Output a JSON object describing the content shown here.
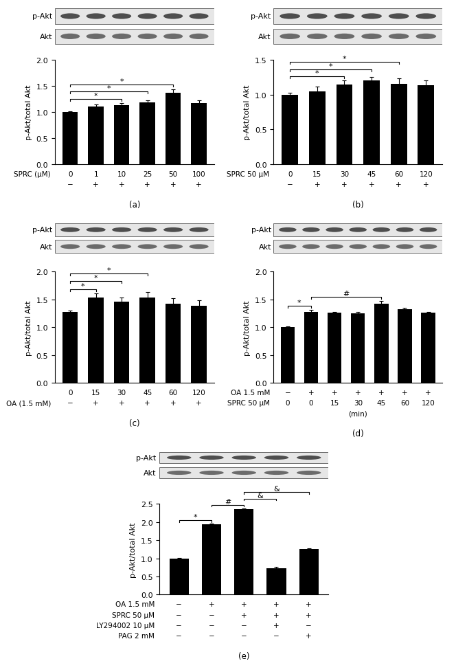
{
  "chart_data": [
    {
      "type": "bar",
      "panel": "(a)",
      "ylabel": "p-Akt/total Akt",
      "color": "#000000",
      "blot_labels": [
        "p-Akt",
        "Akt"
      ],
      "categories": [
        "0",
        "1",
        "10",
        "25",
        "50",
        "100"
      ],
      "values": [
        1.0,
        1.1,
        1.13,
        1.19,
        1.37,
        1.17
      ],
      "errors": [
        0.01,
        0.04,
        0.04,
        0.04,
        0.07,
        0.06
      ],
      "rows": [
        {
          "label": "SPRC (μM)",
          "cells": [
            "0",
            "1",
            "10",
            "25",
            "50",
            "100"
          ]
        },
        {
          "cells": [
            "−",
            "+",
            "+",
            "+",
            "+",
            "+"
          ]
        }
      ],
      "significance": [
        {
          "from": 0,
          "to": 2,
          "label": "*"
        },
        {
          "from": 0,
          "to": 3,
          "label": "*"
        },
        {
          "from": 0,
          "to": 4,
          "label": "*"
        }
      ],
      "ylim": [
        0,
        2.0
      ],
      "yticks": [
        {
          "value": 0,
          "label": "0.0"
        },
        {
          "value": 0.5,
          "label": "0.5"
        },
        {
          "value": 1.0,
          "label": "1.0"
        },
        {
          "value": 1.5,
          "label": "1.5"
        },
        {
          "value": 2.0,
          "label": "2.0"
        }
      ],
      "tick_labels": "y"
    },
    {
      "type": "bar",
      "panel": "(b)",
      "ylabel": "p-Akt/total Akt",
      "color": "#000000",
      "blot_labels": [
        "p-Akt",
        "Akt"
      ],
      "categories": [
        "0",
        "15",
        "30",
        "45",
        "60",
        "120"
      ],
      "values": [
        1.0,
        1.05,
        1.15,
        1.2,
        1.16,
        1.14
      ],
      "errors": [
        0.03,
        0.07,
        0.05,
        0.05,
        0.07,
        0.06
      ],
      "rows": [
        {
          "label": "SPRC 50 μM",
          "cells": [
            "0",
            "15",
            "30",
            "45",
            "60",
            "120"
          ]
        },
        {
          "cells": [
            "−",
            "+",
            "+",
            "+",
            "+",
            "+"
          ]
        }
      ],
      "significance": [
        {
          "from": 0,
          "to": 2,
          "label": "*"
        },
        {
          "from": 0,
          "to": 3,
          "label": "*"
        },
        {
          "from": 0,
          "to": 4,
          "label": "*"
        }
      ],
      "ylim": [
        0,
        1.5
      ],
      "yticks": [
        {
          "value": 0,
          "label": "0.0"
        },
        {
          "value": 0.5,
          "label": "0.5"
        },
        {
          "value": 1.0,
          "label": "1.0"
        },
        {
          "value": 1.5,
          "label": "1.5"
        }
      ],
      "tick_labels": "y"
    },
    {
      "type": "bar",
      "panel": "(c)",
      "ylabel": "p-Akt/total Akt",
      "color": "#000000",
      "blot_labels": [
        "p-Akt",
        "Akt"
      ],
      "categories": [
        "0",
        "15",
        "30",
        "45",
        "60",
        "120"
      ],
      "values": [
        1.27,
        1.53,
        1.46,
        1.54,
        1.43,
        1.39
      ],
      "errors": [
        0.03,
        0.08,
        0.07,
        0.09,
        0.09,
        0.09
      ],
      "rows": [
        {
          "cells": [
            "0",
            "15",
            "30",
            "45",
            "60",
            "120"
          ]
        },
        {
          "label": "OA (1.5 mM)",
          "cells": [
            "−",
            "+",
            "+",
            "+",
            "+",
            "+"
          ]
        }
      ],
      "significance": [
        {
          "from": 0,
          "to": 1,
          "label": "*"
        },
        {
          "from": 0,
          "to": 2,
          "label": "*"
        },
        {
          "from": 0,
          "to": 3,
          "label": "*"
        }
      ],
      "ylim": [
        0,
        2.0
      ],
      "yticks": [
        {
          "value": 0,
          "label": "0.0"
        },
        {
          "value": 0.5,
          "label": "0.5"
        },
        {
          "value": 1.0,
          "label": "1.0"
        },
        {
          "value": 1.5,
          "label": "1.5"
        },
        {
          "value": 2.0,
          "label": "2.0"
        }
      ],
      "tick_labels": "y"
    },
    {
      "type": "bar",
      "panel": "(d)",
      "ylabel": "p-Akt/total Akt",
      "color": "#000000",
      "blot_labels": [
        "p-Akt",
        "Akt"
      ],
      "categories": [
        "0",
        "0",
        "15",
        "30",
        "45",
        "60",
        "120"
      ],
      "values": [
        1.0,
        1.28,
        1.26,
        1.25,
        1.43,
        1.33,
        1.26
      ],
      "errors": [
        0.02,
        0.03,
        0.02,
        0.02,
        0.04,
        0.02,
        0.02
      ],
      "rows": [
        {
          "label": "OA 1.5 mM",
          "cells": [
            "−",
            "+",
            "+",
            "+",
            "+",
            "+",
            "+"
          ]
        },
        {
          "label": "SPRC 50 μM",
          "cells": [
            "0",
            "0",
            "15",
            "30",
            "45",
            "60",
            "120"
          ]
        }
      ],
      "x_note": "(min)",
      "significance": [
        {
          "from": 0,
          "to": 1,
          "label": "*"
        },
        {
          "from": 1,
          "to": 4,
          "label": "#"
        }
      ],
      "ylim": [
        0,
        2.0
      ],
      "yticks": [
        {
          "value": 0,
          "label": "0.0"
        },
        {
          "value": 0.5,
          "label": "0.5"
        },
        {
          "value": 1.0,
          "label": "1.0"
        },
        {
          "value": 1.5,
          "label": "1.5"
        },
        {
          "value": 2.0,
          "label": "2.0"
        }
      ],
      "tick_labels": "y"
    },
    {
      "type": "bar",
      "panel": "(e)",
      "ylabel": "p-Akt/total Akt",
      "color": "#000000",
      "blot_labels": [
        "p-Akt",
        "Akt"
      ],
      "categories": [
        null,
        null,
        null,
        null,
        null
      ],
      "values": [
        1.0,
        1.94,
        2.35,
        0.73,
        1.25
      ],
      "errors": [
        0.01,
        0.01,
        0.02,
        0.03,
        0.02
      ],
      "rows": [
        {
          "label": "OA 1.5 mM",
          "cells": [
            "−",
            "+",
            "+",
            "+",
            "+"
          ]
        },
        {
          "label": "SPRC 50 μM",
          "cells": [
            "−",
            "−",
            "+",
            "+",
            "+"
          ]
        },
        {
          "label": "LY294002 10 μM",
          "cells": [
            "−",
            "−",
            "−",
            "+",
            "−"
          ]
        },
        {
          "label": "PAG 2 mM",
          "cells": [
            "−",
            "−",
            "−",
            "−",
            "+"
          ]
        }
      ],
      "significance": [
        {
          "from": 0,
          "to": 1,
          "label": "*"
        },
        {
          "from": 1,
          "to": 2,
          "label": "#"
        },
        {
          "from": 2,
          "to": 3,
          "label": "&"
        },
        {
          "from": 2,
          "to": 4,
          "label": "&"
        }
      ],
      "ylim": [
        0,
        2.5
      ],
      "yticks": [
        {
          "value": 0,
          "label": "0.0"
        },
        {
          "value": 0.5,
          "label": "0.5"
        },
        {
          "value": 1.0,
          "label": "1.0"
        },
        {
          "value": 1.5,
          "label": "1.5"
        },
        {
          "value": 2.0,
          "label": "2.0"
        },
        {
          "value": 2.5,
          "label": "2.5"
        }
      ],
      "tick_labels": "y"
    }
  ]
}
